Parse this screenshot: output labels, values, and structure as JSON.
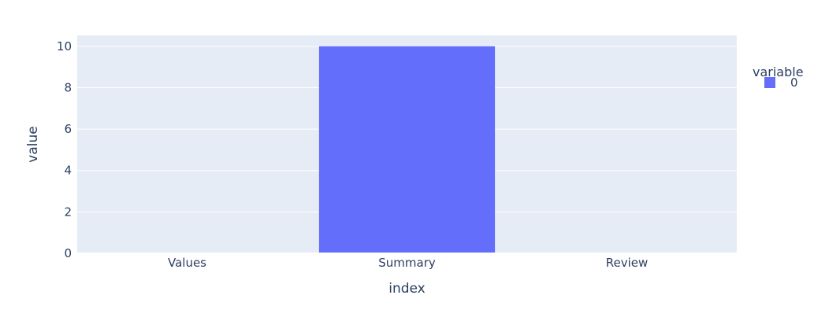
{
  "chart_data": {
    "type": "bar",
    "categories": [
      "Values",
      "Summary",
      "Review"
    ],
    "series": [
      {
        "name": "0",
        "values": [
          0,
          10,
          0
        ],
        "color": "#636efa"
      }
    ],
    "xlabel": "index",
    "ylabel": "value",
    "ylim": [
      0,
      10.526
    ],
    "yticks": [
      0,
      2,
      4,
      6,
      8,
      10
    ],
    "grid": true,
    "legend": {
      "title": "variable",
      "placement": "top-right"
    },
    "plot_background": "#e5ecf6",
    "gridline_color": "#ffffff"
  }
}
